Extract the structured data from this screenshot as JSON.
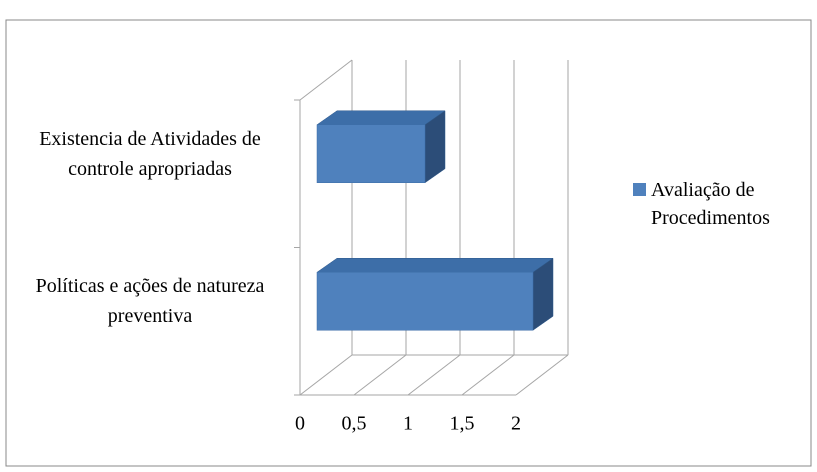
{
  "chart_data": {
    "type": "bar3d",
    "orientation": "horizontal",
    "categories": [
      "Políticas e ações de natureza preventiva",
      "Existencia de Atividades de controle apropriadas"
    ],
    "series": [
      {
        "name": "Avaliação de Procedimentos",
        "color": "#4f81bd",
        "values": [
          2,
          1
        ]
      }
    ],
    "xlim": [
      0,
      2
    ],
    "xticks": [
      0,
      {
        "value": 0.5,
        "label": "0,5"
      },
      1,
      {
        "value": 1.5,
        "label": "1,5"
      },
      2
    ],
    "grid": true,
    "legend": "right"
  }
}
